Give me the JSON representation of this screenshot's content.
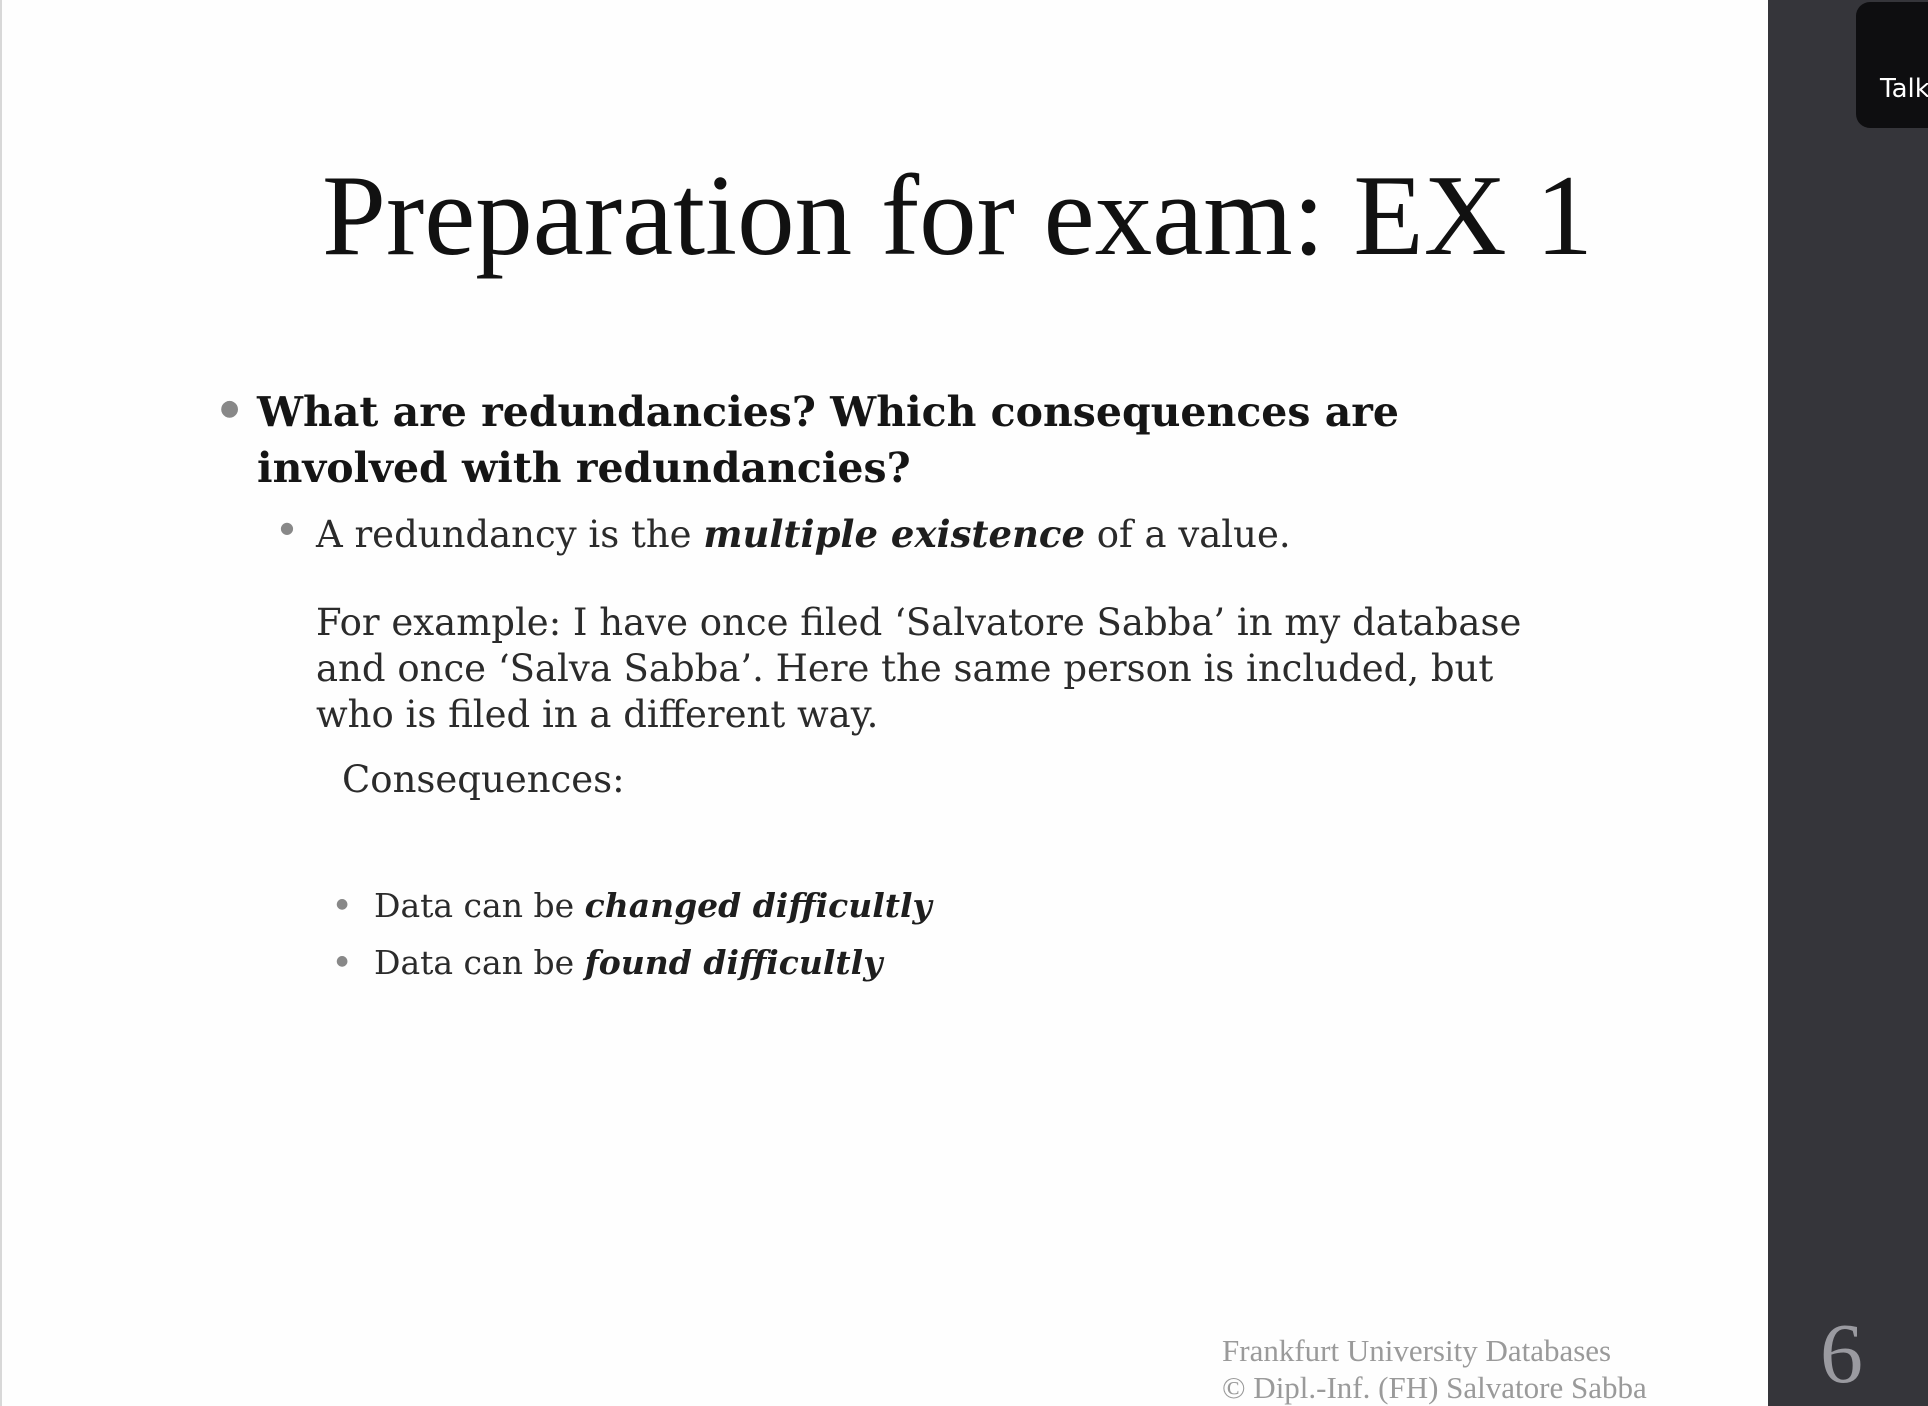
{
  "slide": {
    "title": "Preparation for exam: EX 1",
    "question": "What are redundancies? Which consequences are involved with redundancies?",
    "definition": {
      "before": "A redundancy is the ",
      "emphasis": "multiple existence",
      "after": " of a value."
    },
    "example": "For example: I have once filed ‘Salvatore Sabba’ in my database and once ‘Salva Sabba’. Here the same person is included, but who is filed in a different way.",
    "consequences_label": "Consequences:",
    "consequences": [
      {
        "before": "Data can be ",
        "emphasis": "changed difficultly"
      },
      {
        "before": "Data can be ",
        "emphasis": "found difficultly"
      }
    ],
    "footer": {
      "line1": "Frankfurt University Databases",
      "line2": "© Dipl.-Inf. (FH) Salvatore Sabba"
    },
    "page_number": "6"
  },
  "side_panel": {
    "talk_label": "Talk"
  },
  "icons": {
    "bullet": "bullet-dot-icon"
  }
}
